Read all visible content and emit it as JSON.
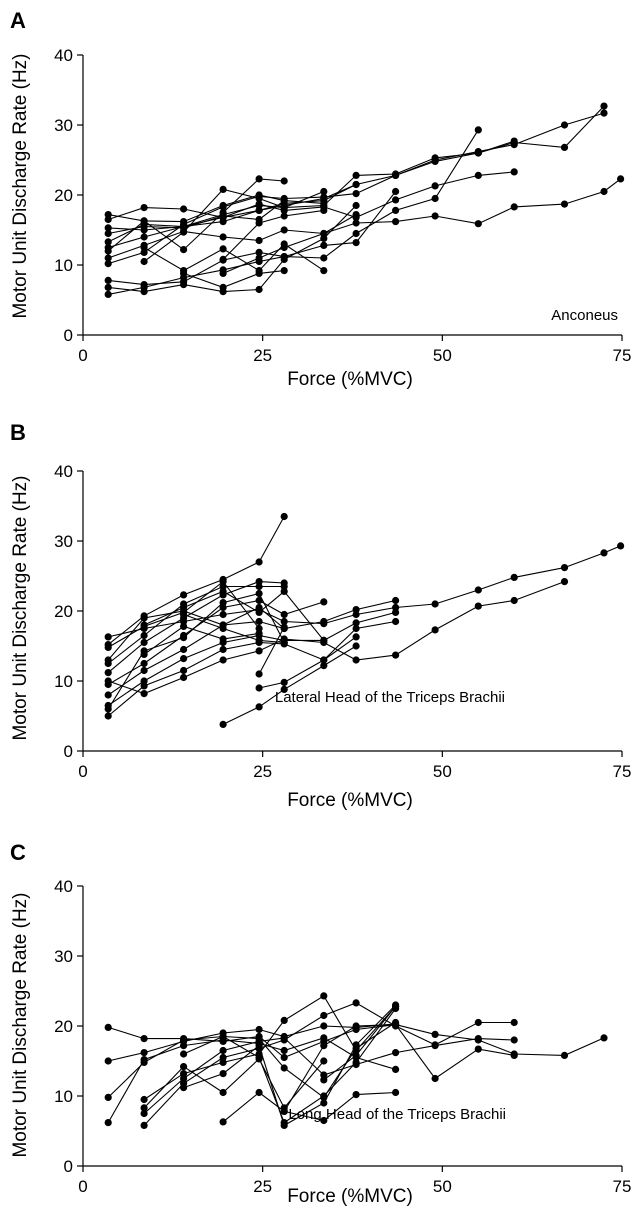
{
  "chart_data": [
    {
      "type": "line",
      "panel": "A",
      "title": "Anconeus",
      "xlabel": "Force (%MVC)",
      "ylabel": "Motor Unit Discharge Rate (Hz)",
      "xlim": [
        0,
        75
      ],
      "ylim": [
        0,
        40
      ],
      "xticks": [
        0,
        25,
        50,
        75
      ],
      "yticks": [
        0,
        10,
        20,
        30,
        40
      ],
      "series": [
        {
          "x": [
            3.5,
            8.5,
            14,
            19.5,
            24.5,
            28,
            33.5,
            38,
            43.5,
            49,
            55,
            60,
            67,
            72.5
          ],
          "y": [
            16.5,
            18.2,
            18,
            16.8,
            17.8,
            18.8,
            19.2,
            21.5,
            22.8,
            25,
            26.2,
            27.2,
            30,
            31.7
          ]
        },
        {
          "x": [
            3.5,
            8.5,
            14,
            19.5,
            24.5,
            28,
            33.5,
            38,
            43.5,
            49,
            55,
            60,
            67,
            72.5
          ],
          "y": [
            15.3,
            15,
            15.5,
            17.2,
            18.5,
            18.2,
            18.5,
            22.8,
            23,
            25.3,
            26,
            27.5,
            26.8,
            32.7
          ]
        },
        {
          "x": [
            3.5,
            8.5,
            14,
            19.5,
            24.5,
            28,
            33.5,
            38,
            43.5,
            49,
            55,
            60
          ],
          "y": [
            10.2,
            11.8,
            15.8,
            18.3,
            19.8,
            19.5,
            19.7,
            20.2,
            22.8,
            24.8,
            26,
            27.7
          ]
        },
        {
          "x": [
            3.5,
            8.5,
            14,
            19.5,
            24.5,
            28,
            33.5,
            38,
            43.5,
            49,
            55,
            60
          ],
          "y": [
            12.5,
            14,
            15.5,
            16.8,
            18.7,
            17.8,
            18.3,
            16.8,
            19.3,
            21.3,
            22.8,
            23.3
          ]
        },
        {
          "x": [
            3.5,
            8.5,
            14,
            19.5,
            24.5,
            28,
            33.5,
            38,
            43.5,
            49,
            55,
            60,
            67,
            72.5,
            74.8
          ],
          "y": [
            11,
            12.8,
            14.8,
            14,
            13.5,
            15,
            14.5,
            16,
            16.2,
            17,
            15.9,
            18.3,
            18.7,
            20.5,
            22.3
          ]
        },
        {
          "x": [
            3.5,
            8.5,
            14,
            19.5,
            24.5,
            28,
            33.5,
            38,
            43.5,
            49,
            55
          ],
          "y": [
            7.8,
            7.2,
            7.6,
            10.7,
            11.8,
            11.2,
            11,
            14.5,
            17.8,
            19.5,
            29.3
          ]
        },
        {
          "x": [
            3.5,
            8.5,
            14,
            19.5,
            24.5,
            28,
            33.5,
            38,
            43.5
          ],
          "y": [
            5.8,
            6.8,
            8.2,
            9.3,
            10.5,
            11.2,
            12.8,
            13.2,
            20.5
          ]
        },
        {
          "x": [
            3.5,
            8.5,
            14,
            19.5,
            24.5,
            28,
            33.5,
            38
          ],
          "y": [
            6.8,
            6.2,
            7.2,
            6.2,
            6.5,
            10.8,
            13.8,
            18.5
          ]
        },
        {
          "x": [
            3.5,
            8.5,
            14,
            19.5,
            24.5,
            28,
            33.5,
            38
          ],
          "y": [
            13.3,
            15.8,
            15.5,
            16.2,
            17.8,
            18.5,
            19.5,
            21.5
          ]
        },
        {
          "x": [
            3.5,
            8.5,
            14,
            19.5,
            24.5,
            28,
            33.5
          ],
          "y": [
            14.5,
            15.5,
            15.3,
            17,
            16.5,
            19.2,
            18.8
          ]
        },
        {
          "x": [
            3.5,
            8.5,
            14,
            19.5,
            24.5,
            28
          ],
          "y": [
            17.2,
            16.3,
            16.2,
            18.5,
            20,
            19.2
          ]
        },
        {
          "x": [
            3.5,
            8.5,
            14,
            19.5,
            24.5,
            28
          ],
          "y": [
            12,
            16.3,
            12.2,
            17.5,
            22.3,
            22
          ]
        },
        {
          "x": [
            8.5,
            14,
            19.5,
            24.5,
            28,
            33.5
          ],
          "y": [
            10.5,
            14.7,
            20.8,
            19.5,
            18.2,
            20.5
          ]
        },
        {
          "x": [
            8.5,
            14,
            19.5,
            24.5,
            28,
            33.5
          ],
          "y": [
            12.5,
            9.2,
            12.3,
            9.2,
            13,
            9.2
          ]
        },
        {
          "x": [
            14,
            19.5,
            24.5,
            28
          ],
          "y": [
            8.8,
            6.8,
            8.8,
            9.2
          ]
        },
        {
          "x": [
            19.5,
            24.5,
            28,
            33.5,
            38
          ],
          "y": [
            8.8,
            11,
            12.5,
            14.5,
            17.2
          ]
        },
        {
          "x": [
            19.5,
            24.5,
            28,
            33.5
          ],
          "y": [
            10.8,
            16,
            17,
            17.8
          ]
        }
      ]
    },
    {
      "type": "line",
      "panel": "B",
      "title": "Lateral Head of the Triceps Brachii",
      "xlabel": "Force (%MVC)",
      "ylabel": "Motor Unit Discharge Rate (Hz)",
      "xlim": [
        0,
        75
      ],
      "ylim": [
        0,
        40
      ],
      "xticks": [
        0,
        25,
        50,
        75
      ],
      "yticks": [
        0,
        10,
        20,
        30,
        40
      ],
      "series": [
        {
          "x": [
            3.5,
            8.5,
            14,
            19.5,
            24.5,
            28,
            33.5,
            38,
            43.5,
            49,
            55,
            60,
            67,
            72.5,
            74.8
          ],
          "y": [
            16.3,
            17.5,
            18.5,
            19.5,
            20.2,
            18.5,
            18.2,
            19.5,
            20.5,
            21,
            23,
            24.8,
            26.2,
            28.3,
            29.3
          ]
        },
        {
          "x": [
            3.5,
            8.5,
            14,
            19.5,
            24.5,
            28,
            33.5,
            38,
            43.5,
            49,
            55,
            60,
            67
          ],
          "y": [
            10,
            8.2,
            10.5,
            13,
            14.3,
            16,
            15.5,
            13,
            13.7,
            17.3,
            20.7,
            21.5,
            24.2
          ]
        },
        {
          "x": [
            3.5,
            8.5,
            14,
            19.5,
            24.5,
            28
          ],
          "y": [
            15.2,
            19.3,
            22.3,
            24.5,
            27,
            33.5
          ]
        },
        {
          "x": [
            3.5,
            8.5,
            14,
            19.5,
            24.5,
            28
          ],
          "y": [
            12.5,
            16.5,
            21,
            23.5,
            23.5,
            23.5
          ]
        },
        {
          "x": [
            3.5,
            8.5,
            14,
            19.5,
            24.5,
            28
          ],
          "y": [
            11.2,
            15.5,
            19,
            22.3,
            24.2,
            24
          ]
        },
        {
          "x": [
            3.5,
            8.5,
            14,
            19.5,
            24.5,
            28,
            33.5
          ],
          "y": [
            9.5,
            12.5,
            16.5,
            20.5,
            21.5,
            19.5,
            21.3
          ]
        },
        {
          "x": [
            3.5,
            8.5,
            14,
            19.5,
            24.5,
            28,
            33.5,
            38,
            43.5
          ],
          "y": [
            8,
            11.5,
            14.5,
            18,
            18.5,
            17.5,
            18.5,
            20.2,
            21.5
          ]
        },
        {
          "x": [
            3.5,
            8.5,
            14,
            19.5,
            24.5,
            28,
            33.5,
            38,
            43.5
          ],
          "y": [
            6.5,
            10,
            13.2,
            15.5,
            16.5,
            15.8,
            15.8,
            18.3,
            19.8
          ]
        },
        {
          "x": [
            3.5,
            8.5,
            14,
            19.5,
            24.5,
            28,
            33.5,
            38,
            43.5
          ],
          "y": [
            5,
            9.3,
            11.5,
            14.5,
            15.5,
            15.3,
            13,
            17.5,
            18.5
          ]
        },
        {
          "x": [
            3.5,
            8.5,
            14,
            19.5,
            24.5,
            28
          ],
          "y": [
            13,
            19,
            20,
            18,
            20.5,
            17.5
          ]
        },
        {
          "x": [
            3.5,
            8.5,
            14,
            19.5,
            24.5
          ],
          "y": [
            14.8,
            17.8,
            19.8,
            24.2,
            17.5
          ]
        },
        {
          "x": [
            3.5,
            8.5,
            14,
            19.5,
            24.5,
            28
          ],
          "y": [
            6,
            14.3,
            16.2,
            21.2,
            22.5,
            15.5
          ]
        },
        {
          "x": [
            8.5,
            14,
            19.5,
            24.5,
            28,
            33.5
          ],
          "y": [
            18,
            20.5,
            22.8,
            19.8,
            22.8,
            15.8
          ]
        },
        {
          "x": [
            8.5,
            14,
            19.5,
            24.5
          ],
          "y": [
            13.8,
            17.8,
            16,
            16.8
          ]
        },
        {
          "x": [
            14,
            19.5,
            24.5,
            28
          ],
          "y": [
            19.5,
            17.5,
            15.8,
            15.5
          ]
        },
        {
          "x": [
            19.5,
            24.5,
            28,
            33.5,
            38
          ],
          "y": [
            3.8,
            6.3,
            8.8,
            12.2,
            15
          ]
        },
        {
          "x": [
            24.5,
            28,
            33.5,
            38
          ],
          "y": [
            9,
            9.8,
            13,
            16.3
          ]
        },
        {
          "x": [
            24.5,
            28
          ],
          "y": [
            11,
            17.7
          ]
        }
      ]
    },
    {
      "type": "line",
      "panel": "C",
      "title": "Long Head of the Triceps Brachii",
      "xlabel": "Force (%MVC)",
      "ylabel": "Motor Unit Discharge Rate (Hz)",
      "xlim": [
        0,
        75
      ],
      "ylim": [
        0,
        40
      ],
      "xticks": [
        0,
        25,
        50,
        75
      ],
      "yticks": [
        0,
        10,
        20,
        30,
        40
      ],
      "series": [
        {
          "x": [
            3.5,
            8.5,
            14,
            19.5,
            24.5,
            28,
            33.5,
            38,
            43.5,
            49,
            55,
            60,
            67,
            72.5
          ],
          "y": [
            19.8,
            18.2,
            18.2,
            17.8,
            18.5,
            15.5,
            17.8,
            19.5,
            20.2,
            18.8,
            18,
            16,
            15.8,
            18.3
          ]
        },
        {
          "x": [
            3.5,
            8.5,
            14,
            19.5,
            24.5,
            28,
            33.5,
            38,
            43.5
          ],
          "y": [
            15,
            16.2,
            17.8,
            19,
            19.5,
            18.5,
            20,
            19.8,
            20.3
          ]
        },
        {
          "x": [
            3.5,
            8.5,
            14,
            19.5,
            24.5,
            28,
            33.5,
            38,
            43.5
          ],
          "y": [
            9.8,
            14.8,
            18,
            18.5,
            18.2,
            14,
            9.8,
            16.8,
            20.5
          ]
        },
        {
          "x": [
            3.5,
            8.5,
            14,
            19.5,
            24.5,
            28,
            33.5,
            38,
            43.5
          ],
          "y": [
            6.2,
            15.2,
            17.2,
            18,
            17.5,
            16.5,
            18.3,
            15.5,
            13.8
          ]
        },
        {
          "x": [
            8.5,
            14,
            19.5,
            24.5,
            28,
            33.5,
            38,
            43.5,
            49,
            55,
            60
          ],
          "y": [
            5.8,
            11.8,
            15.5,
            16.8,
            18,
            21.5,
            23.3,
            20,
            17.3,
            20.5,
            20.5
          ]
        },
        {
          "x": [
            8.5,
            14,
            19.5,
            24.5,
            28,
            33.5,
            38,
            43.5,
            49,
            55,
            60
          ],
          "y": [
            7.5,
            12.5,
            16.5,
            17.8,
            18.3,
            13,
            14.5,
            16.2,
            17.2,
            18.2,
            18
          ]
        },
        {
          "x": [
            8.5,
            14,
            19.5,
            24.5,
            28,
            33.5,
            38,
            43.5
          ],
          "y": [
            9.5,
            13.2,
            14.8,
            16,
            20.8,
            24.3,
            16.5,
            22.8
          ]
        },
        {
          "x": [
            8.5,
            14,
            19.5,
            24.5,
            28,
            33.5
          ],
          "y": [
            8.3,
            14.2,
            10.5,
            15.3,
            8.3,
            15
          ]
        },
        {
          "x": [
            14,
            19.5,
            24.5,
            28,
            33.5,
            38,
            43.5
          ],
          "y": [
            11.2,
            13.2,
            17.2,
            5.8,
            9,
            17.3,
            23
          ]
        },
        {
          "x": [
            14,
            19.5,
            24.5,
            28,
            33.5,
            38,
            43.5
          ],
          "y": [
            16,
            18.5,
            15.5,
            6.2,
            10,
            14.8,
            22.5
          ]
        },
        {
          "x": [
            19.5,
            24.5,
            28,
            33.5,
            38,
            43.5,
            49,
            55,
            60
          ],
          "y": [
            6.3,
            10.5,
            7.8,
            17.2,
            20,
            20.2,
            12.5,
            16.7,
            15.8
          ]
        },
        {
          "x": [
            28,
            33.5,
            38,
            43.5
          ],
          "y": [
            7.8,
            6.5,
            10.2,
            10.5
          ]
        },
        {
          "x": [
            33.5,
            38,
            43.5
          ],
          "y": [
            12.3,
            15.8,
            22.8
          ]
        }
      ]
    }
  ]
}
